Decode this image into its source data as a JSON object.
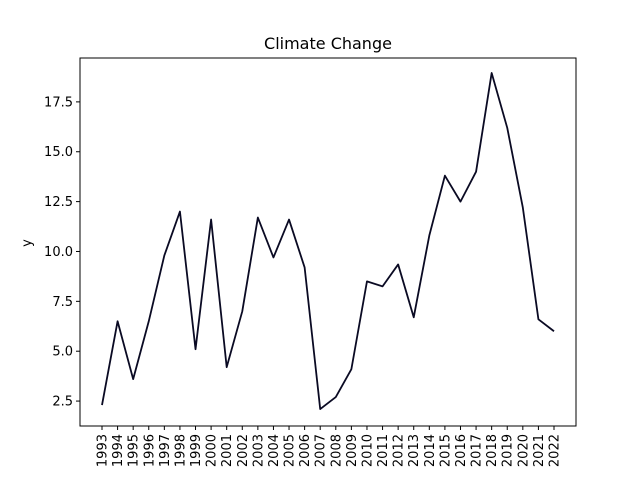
{
  "chart_data": {
    "type": "line",
    "title": "Climate Change",
    "xlabel": "",
    "ylabel": "y",
    "x": [
      "1993",
      "1994",
      "1995",
      "1996",
      "1997",
      "1998",
      "1999",
      "2000",
      "2001",
      "2002",
      "2003",
      "2004",
      "2005",
      "2006",
      "2007",
      "2008",
      "2009",
      "2010",
      "2011",
      "2012",
      "2013",
      "2014",
      "2015",
      "2016",
      "2017",
      "2018",
      "2019",
      "2020",
      "2021",
      "2022"
    ],
    "series": [
      {
        "values": [
          2.3,
          6.5,
          3.6,
          6.5,
          9.8,
          12.0,
          5.1,
          11.6,
          4.2,
          7.0,
          11.7,
          9.7,
          11.6,
          9.2,
          2.1,
          2.7,
          4.1,
          8.5,
          8.25,
          9.35,
          6.7,
          10.8,
          13.8,
          12.5,
          14.0,
          18.95,
          16.2,
          12.2,
          6.6,
          6.0
        ],
        "color": "#0a0a23"
      }
    ],
    "yticks": [
      "2.5",
      "5.0",
      "7.5",
      "10.0",
      "12.5",
      "15.0",
      "17.5"
    ],
    "ylim": [
      1.25,
      19.7
    ],
    "grid": false,
    "legend": false
  }
}
